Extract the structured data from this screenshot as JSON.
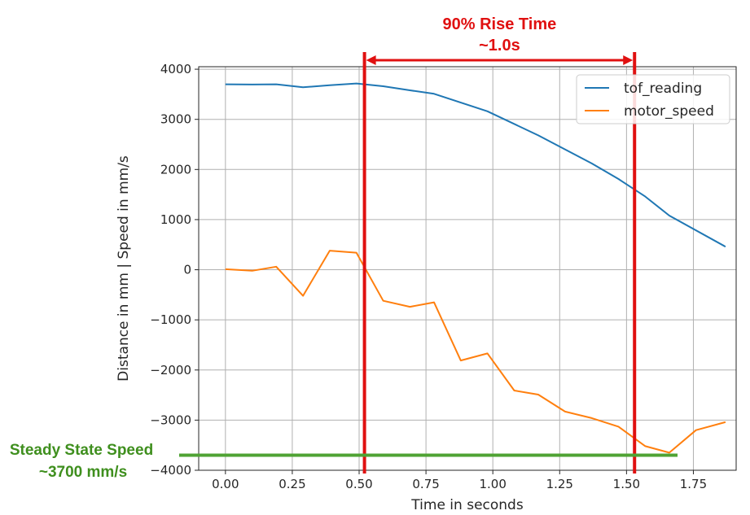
{
  "chart_data": {
    "type": "line",
    "xlabel": "Time in seconds",
    "ylabel": "Distance in mm | Speed in mm/s",
    "xlim": [
      -0.1,
      1.91
    ],
    "ylim": [
      -4000,
      4050
    ],
    "grid": true,
    "legend_placement": "top-right",
    "x_ticks": [
      0.0,
      0.25,
      0.5,
      0.75,
      1.0,
      1.25,
      1.5,
      1.75
    ],
    "x_tick_labels": [
      "0.00",
      "0.25",
      "0.50",
      "0.75",
      "1.00",
      "1.25",
      "1.50",
      "1.75"
    ],
    "y_ticks": [
      4000,
      3000,
      2000,
      1000,
      0,
      -1000,
      -2000,
      -3000,
      -4000
    ],
    "y_tick_labels": [
      "4000",
      "3000",
      "2000",
      "1000",
      "0",
      "−1000",
      "−2000",
      "−3000",
      "−4000"
    ],
    "series": [
      {
        "name": "tof_reading",
        "color": "#1f77b4",
        "x": [
          0.0,
          0.1,
          0.19,
          0.29,
          0.39,
          0.49,
          0.59,
          0.69,
          0.78,
          0.98,
          1.17,
          1.37,
          1.47,
          1.57,
          1.66,
          1.87
        ],
        "y": [
          3700,
          3695,
          3700,
          3640,
          3680,
          3715,
          3660,
          3580,
          3510,
          3160,
          2680,
          2120,
          1810,
          1460,
          1080,
          460
        ]
      },
      {
        "name": "motor_speed",
        "color": "#ff7f0e",
        "x": [
          0.0,
          0.1,
          0.19,
          0.29,
          0.39,
          0.49,
          0.59,
          0.69,
          0.78,
          0.88,
          0.98,
          1.08,
          1.17,
          1.27,
          1.37,
          1.47,
          1.57,
          1.66,
          1.76,
          1.87
        ],
        "y": [
          10,
          -20,
          60,
          -520,
          380,
          340,
          -620,
          -740,
          -650,
          -1810,
          -1670,
          -2410,
          -2490,
          -2830,
          -2960,
          -3130,
          -3520,
          -3650,
          -3200,
          -3040
        ]
      }
    ],
    "annotations": {
      "rise_title": "90% Rise Time",
      "rise_value": "~1.0s",
      "rise_start_x": 0.52,
      "rise_end_x": 1.53,
      "rise_color": "#e01010",
      "steady_title": "Steady State Speed",
      "steady_value": "~3700 mm/s",
      "steady_y": -3700,
      "steady_color": "#4fa334"
    }
  }
}
